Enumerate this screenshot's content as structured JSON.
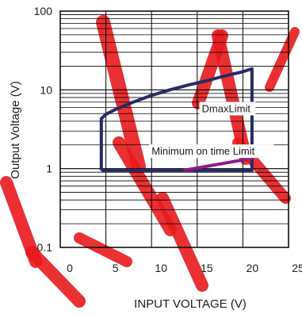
{
  "chart_data": {
    "type": "line",
    "title": "",
    "xlabel": "INPUT VOLTAGE (V)",
    "ylabel": "Output Voltage (V)",
    "x_scale": "linear",
    "y_scale": "log",
    "xlim": [
      0,
      25
    ],
    "ylim": [
      0.1,
      100
    ],
    "grid": true,
    "x_ticks": [
      0,
      5,
      10,
      15,
      20,
      25
    ],
    "x_tick_labels": [
      "0",
      "5",
      "10",
      "15",
      "20",
      "25"
    ],
    "y_ticks": [
      0.1,
      1,
      10,
      100
    ],
    "y_tick_labels": [
      "0.1",
      "1",
      "10",
      "100"
    ],
    "series": [
      {
        "name": "DmaxLimit",
        "color": "#262b63",
        "x": [
          4.5,
          4.5,
          5,
          6,
          8,
          10,
          12,
          14,
          16,
          18,
          20,
          21,
          21,
          4.5
        ],
        "y": [
          0.95,
          4.3,
          4.9,
          5.6,
          7.0,
          8.5,
          10,
          11.5,
          13,
          15,
          17,
          18.5,
          0.95,
          0.95
        ]
      },
      {
        "name": "Minimum on time Limit",
        "color": "#8a1a8c",
        "x": [
          13.5,
          21
        ],
        "y": [
          0.95,
          1.35
        ]
      }
    ],
    "annotations": [
      {
        "text": "DmaxLimit",
        "x": 15.5,
        "y": 5.2
      },
      {
        "text": "Minimum on time Limit",
        "x": 10,
        "y": 1.5
      }
    ],
    "watermark_color": "#e8191c"
  }
}
